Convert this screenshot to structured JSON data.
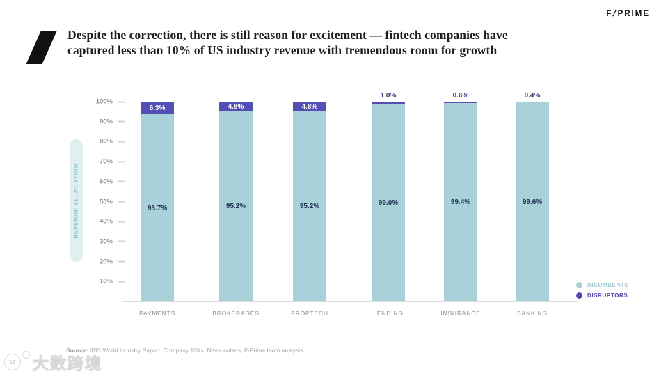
{
  "brand": {
    "logo_f": "F",
    "logo_sep": "/",
    "logo_prime": "PRIME"
  },
  "header": {
    "title_line1": "Despite the correction, there is still reason for excitement — fintech companies have",
    "title_line2": "captured less than 10% of US industry revenue with tremendous room for growth"
  },
  "chart_data": {
    "type": "bar",
    "stacked": true,
    "title": "",
    "ylabel": "REVENUE ALLOCATION",
    "categories": [
      "PAYMENTS",
      "BROKERAGES",
      "PROPTECH",
      "LENDING",
      "INSURANCE",
      "BANKING"
    ],
    "series": [
      {
        "name": "INCUMBENTS",
        "color": "#a9d1d9",
        "values": [
          93.7,
          95.2,
          95.2,
          99.0,
          99.4,
          99.6
        ],
        "labels": [
          "93.7%",
          "95.2%",
          "95.2%",
          "99.0%",
          "99.4%",
          "99.6%"
        ]
      },
      {
        "name": "DISRUPTORS",
        "color": "#544fb4",
        "values": [
          6.3,
          4.8,
          4.8,
          1.0,
          0.6,
          0.4
        ],
        "labels": [
          "6.3%",
          "4.8%",
          "4.8%",
          "1.0%",
          "0.6%",
          "0.4%"
        ]
      }
    ],
    "y_ticks": [
      "100%",
      "90%",
      "80%",
      "70%",
      "60%",
      "50%",
      "40%",
      "30%",
      "20%",
      "10%"
    ],
    "ylim": [
      0,
      100
    ],
    "grid": false,
    "legend": [
      {
        "label": "INCUMBENTS",
        "color": "#a9d1d9",
        "text_color": "#9ccbd3"
      },
      {
        "label": "DISRUPTORS",
        "color": "#5047b5",
        "text_color": "#4a45ae"
      }
    ],
    "legend_position": "bottom-right",
    "incumbent_label_color": "#1f2d50",
    "disruptor_inbar_label_color": "#ffffff",
    "disruptor_above_label_color": "#3a3d74"
  },
  "footer": {
    "source_label": "Source:",
    "source_text": " IBIS World Industry Report, Company 10Ks, News outlets, F-Prime team analysis"
  },
  "watermark": {
    "page_number": "16",
    "text": "大数跨境"
  }
}
